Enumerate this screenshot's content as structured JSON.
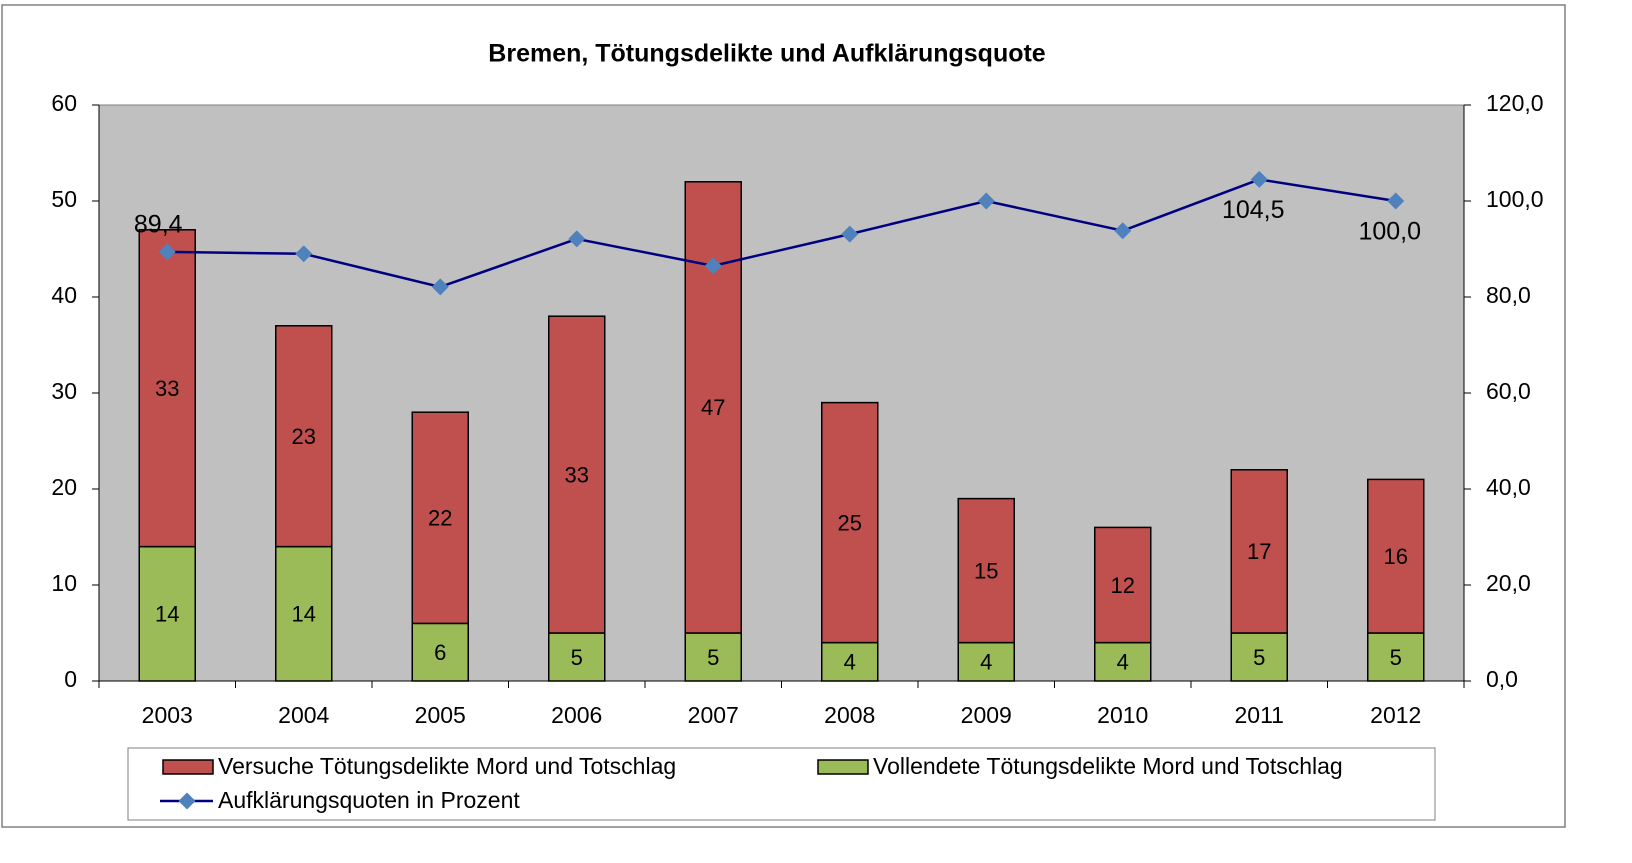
{
  "chart_data": {
    "type": "bar",
    "stacked": true,
    "title": "Bremen, Tötungsdelikte und Aufklärungsquote",
    "categories": [
      "2003",
      "2004",
      "2005",
      "2006",
      "2007",
      "2008",
      "2009",
      "2010",
      "2011",
      "2012"
    ],
    "series": [
      {
        "name": "Versuche Tötungsdelikte Mord und Totschlag",
        "color": "#c0504d",
        "type": "bar",
        "values": [
          33,
          23,
          22,
          33,
          47,
          25,
          15,
          12,
          17,
          16
        ]
      },
      {
        "name": "Vollendete Tötungsdelikte Mord und Totschlag",
        "color": "#9bbb59",
        "type": "bar",
        "values": [
          14,
          14,
          6,
          5,
          5,
          4,
          4,
          4,
          5,
          5
        ]
      },
      {
        "name": "Aufklärungsquoten in Prozent",
        "color": "#000080",
        "marker_color": "#4f81bd",
        "type": "line",
        "axis": "y2",
        "values": [
          89.4,
          89.0,
          82.1,
          92.1,
          86.5,
          93.1,
          100.0,
          93.8,
          104.5,
          100.0
        ],
        "value_labels": [
          "89,4",
          null,
          null,
          null,
          null,
          null,
          null,
          null,
          "104,5",
          "100,0"
        ]
      }
    ],
    "ylim": [
      0,
      60
    ],
    "yticks": [
      0,
      10,
      20,
      30,
      40,
      50,
      60
    ],
    "y2lim": [
      0,
      120
    ],
    "y2ticks": [
      {
        "value": 0,
        "label": "0,0"
      },
      {
        "value": 20,
        "label": "20,0"
      },
      {
        "value": 40,
        "label": "40,0"
      },
      {
        "value": 60,
        "label": "60,0"
      },
      {
        "value": 80,
        "label": "80,0"
      },
      {
        "value": 100,
        "label": "100,0"
      },
      {
        "value": 120,
        "label": "120,0"
      }
    ],
    "plot_background": "#c0c0c0",
    "legend": "bottom"
  }
}
